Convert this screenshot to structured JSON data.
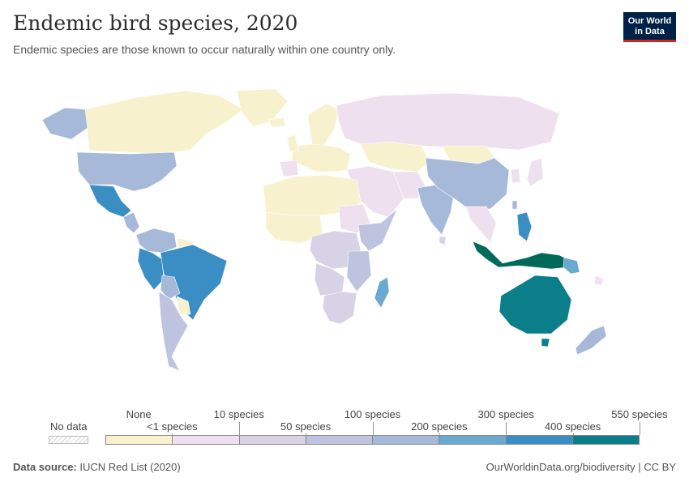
{
  "header": {
    "title": "Endemic bird species, 2020",
    "subtitle": "Endemic species are those known to occur naturally within one country only."
  },
  "logo": {
    "line1": "Our World",
    "line2": "in Data"
  },
  "legend": {
    "no_data_label": "No data",
    "bins": [
      {
        "label": "None",
        "color": "#f7f1ce"
      },
      {
        "label": "<1 species",
        "color": "#eee0ee"
      },
      {
        "label": "10 species",
        "color": "#d7d2e6"
      },
      {
        "label": "50 species",
        "color": "#bec4e0"
      },
      {
        "label": "100 species",
        "color": "#a6b9d9"
      },
      {
        "label": "200 species",
        "color": "#6aa9d0"
      },
      {
        "label": "300 species",
        "color": "#3b8ec4"
      },
      {
        "label": "400 species",
        "color": "#0a7f89"
      },
      {
        "label": "550 species",
        "color": "#006a58"
      }
    ]
  },
  "map_colors": {
    "ocean": "#ffffff",
    "border": "#ffffff",
    "none": "#f7f1ce",
    "lt1": "#eee0ee",
    "b10": "#d7d2e6",
    "b50": "#bec4e0",
    "b100": "#a6b9d9",
    "b200": "#6aa9d0",
    "b300": "#3b8ec4",
    "b400": "#0a7f89",
    "b550": "#006a58"
  },
  "footer": {
    "source_label": "Data source:",
    "source_value": "IUCN Red List (2020)",
    "url": "OurWorldinData.org/biodiversity | CC BY"
  }
}
